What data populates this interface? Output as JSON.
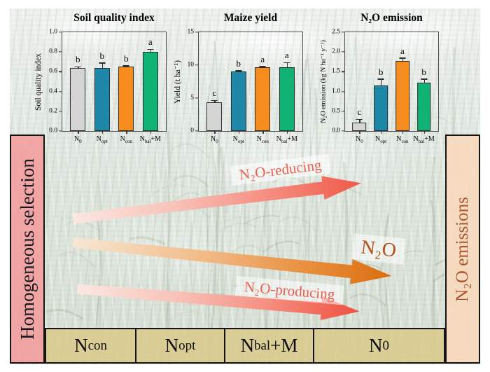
{
  "figure": {
    "left_band_label": "Homogeneous selection",
    "right_band_label": "N₂O emissions",
    "arrow_labels": {
      "top": "N₂O-reducing",
      "middle": "N₂O",
      "bottom": "N₂O-producing"
    },
    "bottom_row": [
      "N~con~",
      "N~opt~",
      "N~bal~+M",
      "N~0~"
    ]
  },
  "colors": {
    "bars": [
      "#d5d5d5",
      "#1f87a8",
      "#f78c1e",
      "#10b374"
    ],
    "band_pink": "#f2a0a0",
    "band_peach": "#f7d9be",
    "cell_tan": "#d9cb8e",
    "arrow_salmon": "#ef5a49",
    "arrow_orange": "#da6d10",
    "salmon_text": "#ee5d50",
    "rust_text": "#a9552b"
  },
  "chart_data": [
    {
      "type": "bar",
      "title": "Soil quality index",
      "ylabel": "Soil quality index",
      "xlabel": "",
      "ylim": [
        0,
        1.0
      ],
      "yticks": [
        "1.0",
        "0.8",
        "0.6",
        "0.4",
        "0.2",
        "0.0"
      ],
      "categories": [
        "N~0~",
        "N~opt~",
        "N~con~",
        "N~bal~+M"
      ],
      "values": [
        0.64,
        0.64,
        0.65,
        0.8
      ],
      "errors": [
        0.012,
        0.05,
        0.012,
        0.028
      ],
      "sig_letters": [
        "b",
        "b",
        "b",
        "a"
      ],
      "grid": false,
      "legend": false
    },
    {
      "type": "bar",
      "title": "Maize yield",
      "ylabel": "Yield (t ha⁻¹)",
      "xlabel": "",
      "ylim": [
        0,
        15
      ],
      "yticks": [
        "15",
        "10",
        "5",
        "0"
      ],
      "categories": [
        "N~0~",
        "N~opt~",
        "N~con~",
        "N~bal~+M"
      ],
      "values": [
        4.4,
        9.0,
        9.7,
        9.7
      ],
      "errors": [
        0.25,
        0.18,
        0.12,
        0.7
      ],
      "sig_letters": [
        "c",
        "b",
        "a",
        "a"
      ],
      "grid": false,
      "legend": false
    },
    {
      "type": "bar",
      "title": "N₂O emission",
      "ylabel": "N₂O emission (kg N ha⁻¹ y⁻¹)",
      "xlabel": "",
      "ylim": [
        0,
        2.5
      ],
      "yticks": [
        "2.5",
        "2.0",
        "1.5",
        "1.0",
        "0.5",
        "0.0"
      ],
      "categories": [
        "N~0~",
        "N~opt~",
        "N~con~",
        "N~bal~+M"
      ],
      "values": [
        0.22,
        1.15,
        1.77,
        1.22
      ],
      "errors": [
        0.08,
        0.17,
        0.08,
        0.1
      ],
      "sig_letters": [
        "c",
        "b",
        "a",
        "b"
      ],
      "grid": false,
      "legend": false
    }
  ]
}
